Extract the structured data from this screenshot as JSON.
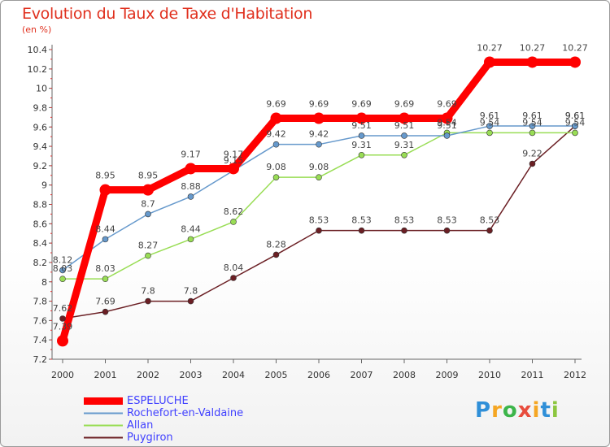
{
  "chart_data": {
    "type": "line",
    "title": "Evolution du Taux de Taxe d'Habitation",
    "subtitle": "(en %)",
    "x": [
      "2000",
      "2001",
      "2002",
      "2003",
      "2004",
      "2005",
      "2006",
      "2007",
      "2008",
      "2009",
      "2010",
      "2011",
      "2012"
    ],
    "ylim": [
      7.2,
      10.4
    ],
    "yticks": [
      7.2,
      7.4,
      7.6,
      7.8,
      8,
      8.2,
      8.4,
      8.6,
      8.8,
      9,
      9.2,
      9.4,
      9.6,
      9.8,
      10,
      10.2,
      10.4
    ],
    "grid": false,
    "legend_position": "bottom-left",
    "series": [
      {
        "name": "Puygiron",
        "color": "#6b1f24",
        "values": [
          7.62,
          7.69,
          7.8,
          7.8,
          8.04,
          8.28,
          8.53,
          8.53,
          8.53,
          8.53,
          8.53,
          9.22,
          9.61
        ]
      },
      {
        "name": "Allan",
        "color": "#99dd55",
        "values": [
          8.03,
          8.03,
          8.27,
          8.44,
          8.62,
          9.08,
          9.08,
          9.31,
          9.31,
          9.54,
          9.54,
          9.54,
          9.54
        ]
      },
      {
        "name": "Rochefort-en-Valdaine",
        "color": "#6699cc",
        "values": [
          8.12,
          8.44,
          8.7,
          8.88,
          9.15,
          9.42,
          9.42,
          9.51,
          9.51,
          9.51,
          9.61,
          9.61,
          9.61
        ]
      },
      {
        "name": "ESPELUCHE",
        "color": "#ff0000",
        "values": [
          7.39,
          8.95,
          8.95,
          9.17,
          9.17,
          9.69,
          9.69,
          9.69,
          9.69,
          9.69,
          10.27,
          10.27,
          10.27
        ]
      }
    ],
    "value_labels": [
      [
        "7.62",
        "7.69",
        "7.8",
        "7.8",
        "8.04",
        "8.28",
        "8.53",
        "8.53",
        "8.53",
        "8.53",
        "8.53",
        "9.22",
        "9.61"
      ],
      [
        "8.03",
        "8.03",
        "8.27",
        "8.44",
        "8.62",
        "9.08",
        "9.08",
        "9.31",
        "9.31",
        "9.54",
        "9.54",
        "9.54",
        "9.54"
      ],
      [
        "8.12",
        "8.44",
        "8.7",
        "8.88",
        "9.15",
        "9.42",
        "9.42",
        "9.51",
        "9.51",
        "9.51",
        "9.61",
        "9.61",
        "9.61"
      ],
      [
        "7.39",
        "8.95",
        "8.95",
        "9.17",
        "9.17",
        "9.69",
        "9.69",
        "9.69",
        "9.69",
        "9.69",
        "10.27",
        "10.27",
        "10.27"
      ]
    ]
  },
  "legend": [
    {
      "label": "ESPELUCHE"
    },
    {
      "label": "Rochefort-en-Valdaine"
    },
    {
      "label": "Allan"
    },
    {
      "label": "Puygiron"
    }
  ],
  "logo": {
    "letters": [
      "P",
      "r",
      "o",
      "x",
      "i",
      "t",
      "i"
    ],
    "colors": [
      "#2f8fd8",
      "#f5a623",
      "#3cb54a",
      "#e84c3d",
      "#f5a623",
      "#2f8fd8",
      "#8cc63f"
    ]
  }
}
